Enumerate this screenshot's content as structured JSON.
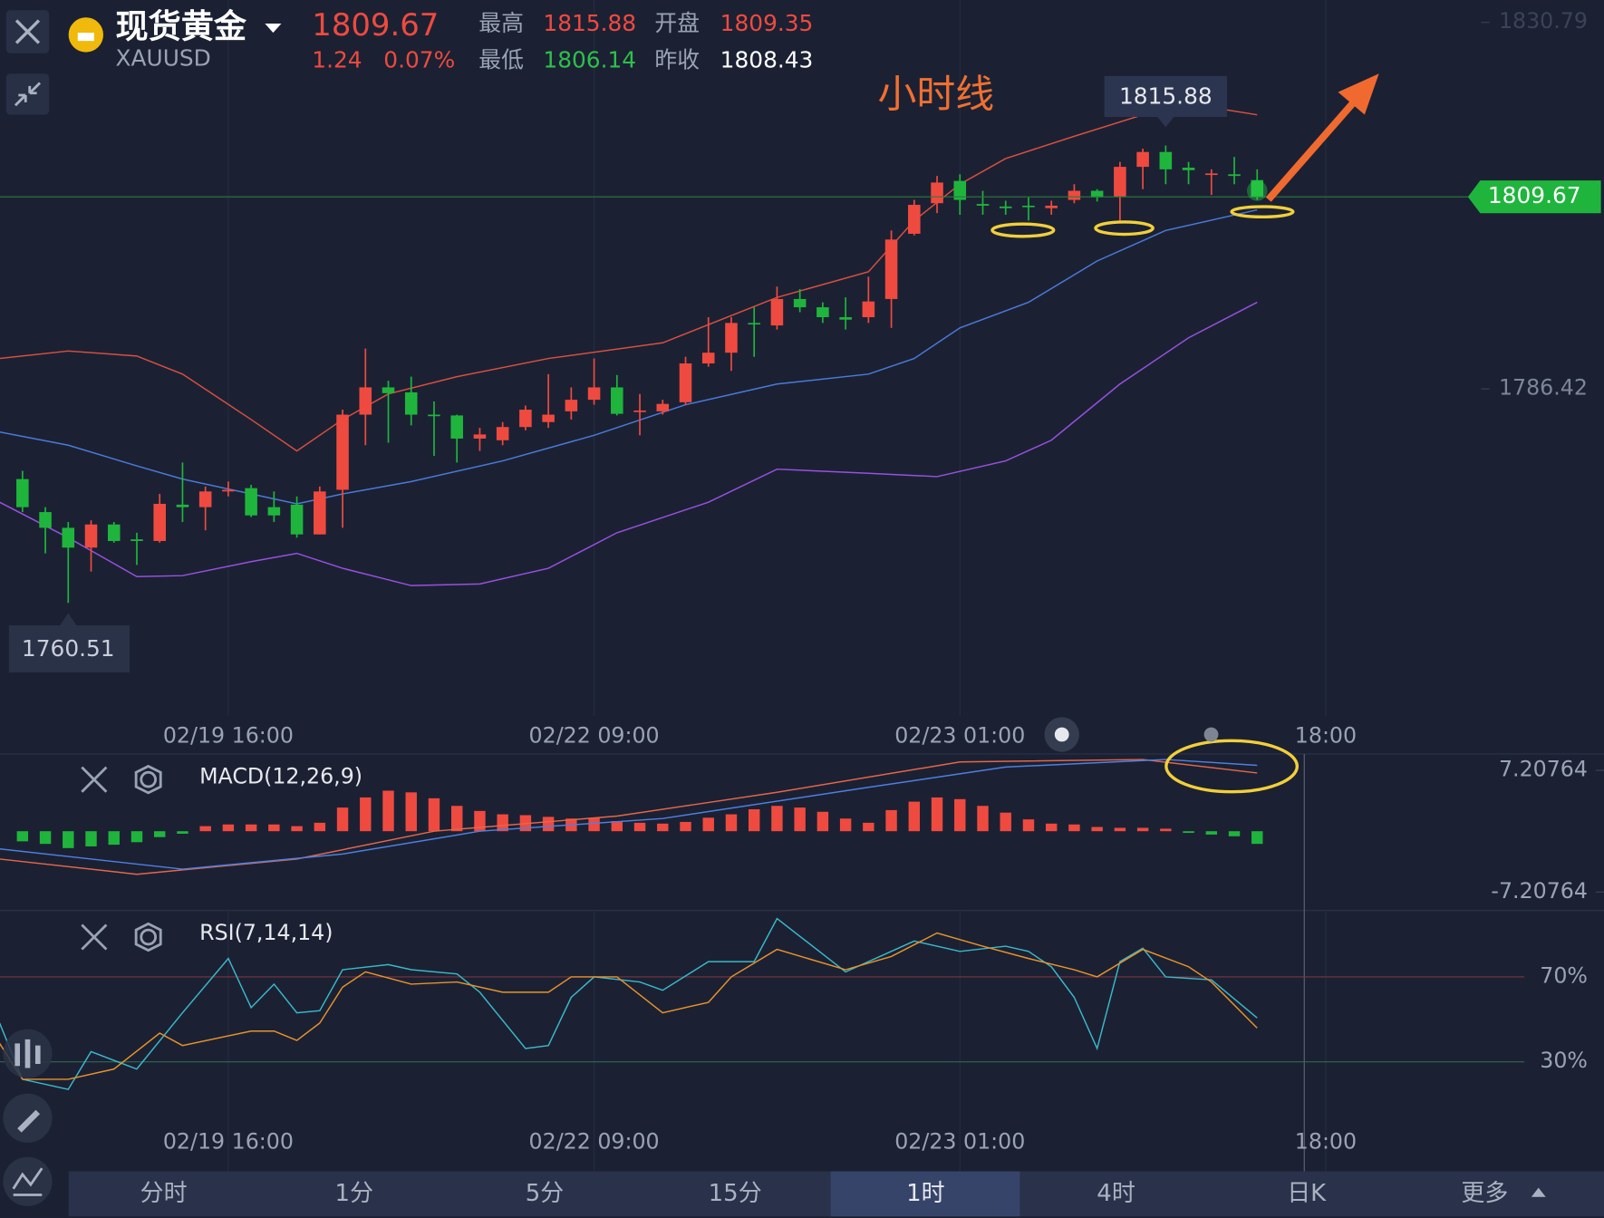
{
  "header": {
    "name": "现货黄金",
    "symbol": "XAUUSD",
    "price": 1809.67,
    "change": 1.24,
    "change_pct": "0.07%",
    "high_label": "最高",
    "high": 1815.88,
    "open_label": "开盘",
    "open": 1809.35,
    "low_label": "最低",
    "low": 1806.14,
    "prev_close_label": "昨收",
    "prev_close": 1808.43
  },
  "annotation": "小时线",
  "chart_data": [
    {
      "type": "candlestick",
      "xlim": [
        -0.984,
        69.17
      ],
      "xticks": [
        {
          "value": 9,
          "label": "02/19 16:00"
        },
        {
          "value": 25,
          "label": "02/22 09:00"
        },
        {
          "value": 41,
          "label": "02/23 01:00"
        },
        {
          "value": 57,
          "label": "18:00"
        }
      ],
      "ylim": [
        1746.8,
        1833.5
      ],
      "yticks": [
        1830.79,
        1786.42
      ],
      "up_color": "#ef4a3f",
      "down_color": "#1fb53c",
      "open": [
        1775.5,
        1771.5,
        1769.6,
        1767.2,
        1770.0,
        1768.2,
        1768.0,
        1772.4,
        1772.1,
        1774.0,
        1774.4,
        1772.1,
        1772.4,
        1768.8,
        1774.2,
        1783.3,
        1786.6,
        1786.0,
        1783.3,
        1783.2,
        1780.4,
        1780.2,
        1781.8,
        1782.4,
        1783.7,
        1785.1,
        1786.6,
        1783.7,
        1783.7,
        1784.8,
        1789.5,
        1790.8,
        1794.4,
        1794.1,
        1797.3,
        1796.3,
        1795.1,
        1795.1,
        1797.3,
        1805.2,
        1808.9,
        1811.6,
        1808.8,
        1808.5,
        1808.6,
        1808.3,
        1809.3,
        1810.4,
        1809.7,
        1813.3,
        1815.1,
        1813.2,
        1812.4,
        1812.4,
        1811.7
      ],
      "high": [
        1776.5,
        1772.1,
        1770.3,
        1770.5,
        1770.3,
        1769.0,
        1773.7,
        1777.5,
        1774.6,
        1775.2,
        1774.8,
        1774.0,
        1773.4,
        1774.6,
        1783.9,
        1791.3,
        1787.4,
        1787.9,
        1784.9,
        1783.3,
        1781.7,
        1782.4,
        1784.4,
        1788.2,
        1786.6,
        1790.1,
        1788.1,
        1785.8,
        1785.1,
        1790.3,
        1795.1,
        1795.1,
        1796.3,
        1798.8,
        1798.5,
        1796.9,
        1797.5,
        1800.0,
        1805.6,
        1809.3,
        1812.2,
        1812.4,
        1810.4,
        1809.2,
        1809.6,
        1809.2,
        1811.2,
        1810.6,
        1813.9,
        1815.5,
        1815.88,
        1813.9,
        1813.0,
        1814.5,
        1813.0
      ],
      "low": [
        1771.5,
        1766.5,
        1760.51,
        1764.3,
        1767.8,
        1765.1,
        1767.8,
        1770.3,
        1769.3,
        1773.4,
        1770.9,
        1770.3,
        1768.4,
        1768.8,
        1769.6,
        1779.6,
        1779.9,
        1782.0,
        1778.3,
        1777.5,
        1778.9,
        1779.6,
        1781.4,
        1781.7,
        1782.7,
        1784.5,
        1783.2,
        1780.8,
        1783.3,
        1784.5,
        1789.1,
        1788.6,
        1790.3,
        1793.6,
        1795.7,
        1794.4,
        1793.6,
        1794.4,
        1793.8,
        1805.0,
        1807.7,
        1807.5,
        1807.5,
        1807.5,
        1806.8,
        1807.5,
        1808.9,
        1809.1,
        1806.8,
        1810.6,
        1811.2,
        1811.2,
        1809.9,
        1811.2,
        1809.3
      ],
      "close": [
        1772.1,
        1769.6,
        1767.2,
        1770.0,
        1768.0,
        1768.0,
        1772.5,
        1772.1,
        1774.0,
        1774.2,
        1771.1,
        1771.1,
        1768.8,
        1774.0,
        1783.3,
        1786.6,
        1785.9,
        1783.3,
        1783.2,
        1780.4,
        1780.9,
        1781.8,
        1783.9,
        1783.3,
        1785.1,
        1786.6,
        1783.4,
        1783.8,
        1784.6,
        1789.5,
        1790.8,
        1794.4,
        1794.3,
        1797.3,
        1796.3,
        1795.1,
        1794.8,
        1797.0,
        1804.5,
        1808.7,
        1811.4,
        1809.3,
        1808.6,
        1808.3,
        1808.5,
        1808.6,
        1810.4,
        1809.6,
        1813.3,
        1815.1,
        1813.0,
        1812.9,
        1812.5,
        1812.2,
        1809.67
      ],
      "lines": [
        {
          "color": "#d9503f",
          "x": [
            -1,
            2,
            5,
            7,
            10,
            12,
            14,
            16,
            19,
            23,
            28,
            33,
            37,
            39,
            41,
            43,
            46,
            49,
            52,
            54
          ],
          "values": [
            1790.1,
            1791.0,
            1790.4,
            1788.2,
            1782.7,
            1778.9,
            1782.7,
            1785.8,
            1787.9,
            1790.1,
            1792.0,
            1797.5,
            1800.6,
            1806.8,
            1811.2,
            1814.3,
            1817.0,
            1819.6,
            1820.5,
            1819.6
          ]
        },
        {
          "color": "#4a7ad8",
          "x": [
            -1,
            2,
            5,
            7,
            10,
            12,
            14,
            17,
            21,
            25,
            29,
            33,
            37,
            39,
            41,
            44,
            47,
            50,
            54
          ],
          "values": [
            1781.2,
            1779.6,
            1777.1,
            1775.5,
            1773.7,
            1772.5,
            1773.7,
            1775.2,
            1777.7,
            1780.8,
            1784.5,
            1787.0,
            1788.2,
            1790.1,
            1793.8,
            1796.9,
            1801.9,
            1805.6,
            1808.1
          ]
        },
        {
          "color": "#9850e0",
          "x": [
            -1,
            2,
            5,
            7,
            10,
            12,
            14,
            17,
            20,
            23,
            26,
            30,
            33,
            37,
            40,
            43,
            45,
            48,
            51,
            54
          ],
          "values": [
            1772.7,
            1768.4,
            1763.7,
            1763.8,
            1765.5,
            1766.5,
            1764.7,
            1762.6,
            1762.8,
            1764.7,
            1769.0,
            1772.7,
            1776.7,
            1776.2,
            1775.8,
            1777.7,
            1780.2,
            1787.0,
            1792.6,
            1796.9
          ]
        }
      ]
    },
    {
      "type": "macd",
      "title": "MACD(12,26,9)",
      "xlim": [
        -0.984,
        69.17
      ],
      "ylim": [
        -9.39,
        9.15
      ],
      "yticks": [
        7.20764,
        -7.20764
      ],
      "up_color": "#ef4a3f",
      "down_color": "#1fb53c",
      "histogram": [
        -1.2,
        -1.5,
        -2.0,
        -1.8,
        -1.6,
        -1.3,
        -0.7,
        -0.3,
        0.6,
        0.8,
        0.8,
        0.8,
        0.6,
        1.0,
        2.8,
        4.0,
        4.8,
        4.6,
        3.9,
        3.0,
        2.4,
        2.0,
        1.9,
        1.7,
        1.5,
        1.6,
        1.2,
        1.0,
        0.9,
        1.1,
        1.6,
        2.0,
        2.6,
        3.0,
        2.8,
        2.3,
        1.5,
        1.0,
        2.5,
        3.5,
        4.0,
        3.8,
        3.0,
        2.2,
        1.4,
        0.9,
        0.8,
        0.5,
        0.4,
        0.4,
        0.3,
        -0.2,
        -0.4,
        -0.6,
        -1.5
      ],
      "lines": [
        {
          "color": "#e4674a",
          "x": [
            -1,
            5,
            12,
            18,
            26,
            33,
            41,
            49,
            54
          ],
          "values": [
            -3.3,
            -5.1,
            -3.3,
            0,
            1.8,
            4.6,
            8.2,
            8.5,
            6.9
          ]
        },
        {
          "color": "#4f7fe0",
          "x": [
            -1,
            7,
            14,
            20,
            28,
            37,
            43,
            50,
            54
          ],
          "values": [
            -2.1,
            -4.5,
            -2.7,
            0,
            1.5,
            5.2,
            7.6,
            8.5,
            7.8
          ]
        }
      ]
    },
    {
      "type": "rsi",
      "title": "RSI(7,14,14)",
      "xlim": [
        -0.984,
        69.17
      ],
      "xticks": [
        {
          "value": 9,
          "label": "02/19 16:00"
        },
        {
          "value": 25,
          "label": "02/22 09:00"
        },
        {
          "value": 41,
          "label": "02/23 01:00"
        },
        {
          "value": 57,
          "label": "18:00"
        }
      ],
      "ylim": [
        2.5,
        101.3
      ],
      "yticks": [
        {
          "value": 70,
          "label": "70%"
        },
        {
          "value": 30,
          "label": "30%"
        }
      ],
      "grid_colors": [
        "#7a3440",
        "#2e6b4f"
      ],
      "lines": [
        {
          "color": "#3ab8c8",
          "x": [
            -1,
            0,
            2,
            3,
            5,
            7,
            9,
            10,
            11,
            12,
            13,
            14,
            16,
            17,
            19,
            20,
            22,
            23,
            24,
            25,
            27,
            28,
            30,
            32,
            33,
            36,
            39,
            41,
            43,
            44,
            45,
            46,
            47,
            48,
            49,
            50,
            52,
            54
          ],
          "values": [
            48.3,
            21.8,
            17.0,
            34.8,
            26.6,
            53.1,
            78.7,
            55.5,
            66.6,
            53.1,
            54.1,
            73.4,
            75.8,
            73.4,
            71.4,
            62.8,
            36.3,
            37.7,
            60.4,
            70,
            67.6,
            63.7,
            77.2,
            77.2,
            97.5,
            72.4,
            86.9,
            82.0,
            84.5,
            82,
            74.8,
            60.4,
            36.3,
            77.2,
            83.5,
            70,
            68.6,
            50.7
          ]
        },
        {
          "color": "#e8922a",
          "x": [
            -1,
            0,
            2,
            4,
            6,
            7,
            10,
            11,
            12,
            13,
            14,
            15,
            17,
            19,
            21,
            23,
            24,
            26,
            28,
            30,
            31,
            33,
            36,
            38,
            40,
            42,
            44,
            46,
            47,
            49,
            51,
            52,
            54
          ],
          "values": [
            38.7,
            21.8,
            21.8,
            26.6,
            43.5,
            37.7,
            44.5,
            44.5,
            40.1,
            48.3,
            65.2,
            72.4,
            66.6,
            67.6,
            62.8,
            62.8,
            70,
            70,
            53.1,
            58,
            70,
            83,
            73.4,
            79.6,
            90.7,
            84.5,
            78.7,
            73.4,
            70,
            83,
            74.8,
            67.6,
            45.9
          ]
        }
      ]
    }
  ],
  "tabs": [
    "分时",
    "1分",
    "5分",
    "15分",
    "1时",
    "4时",
    "日K",
    "更多"
  ]
}
